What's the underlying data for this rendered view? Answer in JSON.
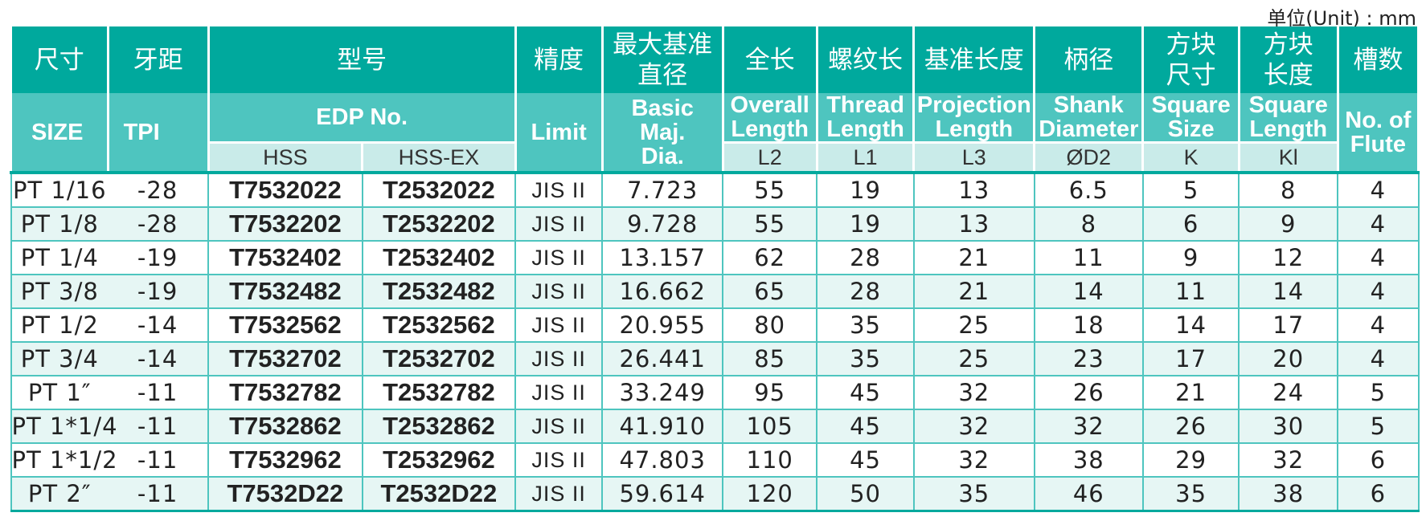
{
  "unit_label": "单位(Unit) : mm",
  "header_cn": {
    "size": "尺寸",
    "tpi": "牙距",
    "model": "型号",
    "limit": "精度",
    "basic_line1": "最大基准",
    "basic_line2": "直径",
    "overall": "全长",
    "thread": "螺纹长",
    "projection": "基准长度",
    "shank": "柄径",
    "square_size_line1": "方块",
    "square_size_line2": "尺寸",
    "square_length_line1": "方块",
    "square_length_line2": "长度",
    "flute": "槽数"
  },
  "header_en": {
    "size": "SIZE",
    "tpi": "TPI",
    "edp": "EDP No.",
    "limit": "Limit",
    "basic_line1": "Basic",
    "basic_line2": "Maj.",
    "basic_line3": "Dia.",
    "overall_line1": "Overall",
    "overall_line2": "Length",
    "thread_line1": "Thread",
    "thread_line2": "Length",
    "projection_line1": "Projection",
    "projection_line2": "Length",
    "shank_line1": "Shank",
    "shank_line2": "Diameter",
    "square_size_line1": "Square",
    "square_size_line2": "Size",
    "square_length_line1": "Square",
    "square_length_line2": "Length",
    "flute_line1": "No. of",
    "flute_line2": "Flute"
  },
  "header_sub": {
    "hss": "HSS",
    "hss_ex": "HSS-EX",
    "l2": "L2",
    "l1": "L1",
    "l3": "L3",
    "d2": "ØD2",
    "k": "K",
    "kl": "Kl"
  },
  "rows": [
    {
      "size": "PT 1/16",
      "tpi": "-28",
      "hss": "T7532022",
      "hss_ex": "T2532022",
      "limit": "JIS II",
      "basic": "7.723",
      "overall": "55",
      "thread": "19",
      "projection": "13",
      "shank": "6.5",
      "square_size": "5",
      "square_length": "8",
      "flute": "4"
    },
    {
      "size": "PT 1/8",
      "tpi": "-28",
      "hss": "T7532202",
      "hss_ex": "T2532202",
      "limit": "JIS II",
      "basic": "9.728",
      "overall": "55",
      "thread": "19",
      "projection": "13",
      "shank": "8",
      "square_size": "6",
      "square_length": "9",
      "flute": "4"
    },
    {
      "size": "PT 1/4",
      "tpi": "-19",
      "hss": "T7532402",
      "hss_ex": "T2532402",
      "limit": "JIS II",
      "basic": "13.157",
      "overall": "62",
      "thread": "28",
      "projection": "21",
      "shank": "11",
      "square_size": "9",
      "square_length": "12",
      "flute": "4"
    },
    {
      "size": "PT 3/8",
      "tpi": "-19",
      "hss": "T7532482",
      "hss_ex": "T2532482",
      "limit": "JIS II",
      "basic": "16.662",
      "overall": "65",
      "thread": "28",
      "projection": "21",
      "shank": "14",
      "square_size": "11",
      "square_length": "14",
      "flute": "4"
    },
    {
      "size": "PT 1/2",
      "tpi": "-14",
      "hss": "T7532562",
      "hss_ex": "T2532562",
      "limit": "JIS II",
      "basic": "20.955",
      "overall": "80",
      "thread": "35",
      "projection": "25",
      "shank": "18",
      "square_size": "14",
      "square_length": "17",
      "flute": "4"
    },
    {
      "size": "PT 3/4",
      "tpi": "-14",
      "hss": "T7532702",
      "hss_ex": "T2532702",
      "limit": "JIS II",
      "basic": "26.441",
      "overall": "85",
      "thread": "35",
      "projection": "25",
      "shank": "23",
      "square_size": "17",
      "square_length": "20",
      "flute": "4"
    },
    {
      "size": "PT 1″",
      "tpi": "-11",
      "hss": "T7532782",
      "hss_ex": "T2532782",
      "limit": "JIS II",
      "basic": "33.249",
      "overall": "95",
      "thread": "45",
      "projection": "32",
      "shank": "26",
      "square_size": "21",
      "square_length": "24",
      "flute": "5"
    },
    {
      "size": "PT 1*1/4",
      "tpi": "-11",
      "hss": "T7532862",
      "hss_ex": "T2532862",
      "limit": "JIS II",
      "basic": "41.910",
      "overall": "105",
      "thread": "45",
      "projection": "32",
      "shank": "32",
      "square_size": "26",
      "square_length": "30",
      "flute": "5"
    },
    {
      "size": "PT 1*1/2",
      "tpi": "-11",
      "hss": "T7532962",
      "hss_ex": "T2532962",
      "limit": "JIS II",
      "basic": "47.803",
      "overall": "110",
      "thread": "45",
      "projection": "32",
      "shank": "38",
      "square_size": "29",
      "square_length": "32",
      "flute": "6"
    },
    {
      "size": "PT 2″",
      "tpi": "-11",
      "hss": "T7532D22",
      "hss_ex": "T2532D22",
      "limit": "JIS II",
      "basic": "59.614",
      "overall": "120",
      "thread": "50",
      "projection": "35",
      "shank": "46",
      "square_size": "35",
      "square_length": "38",
      "flute": "6"
    }
  ]
}
